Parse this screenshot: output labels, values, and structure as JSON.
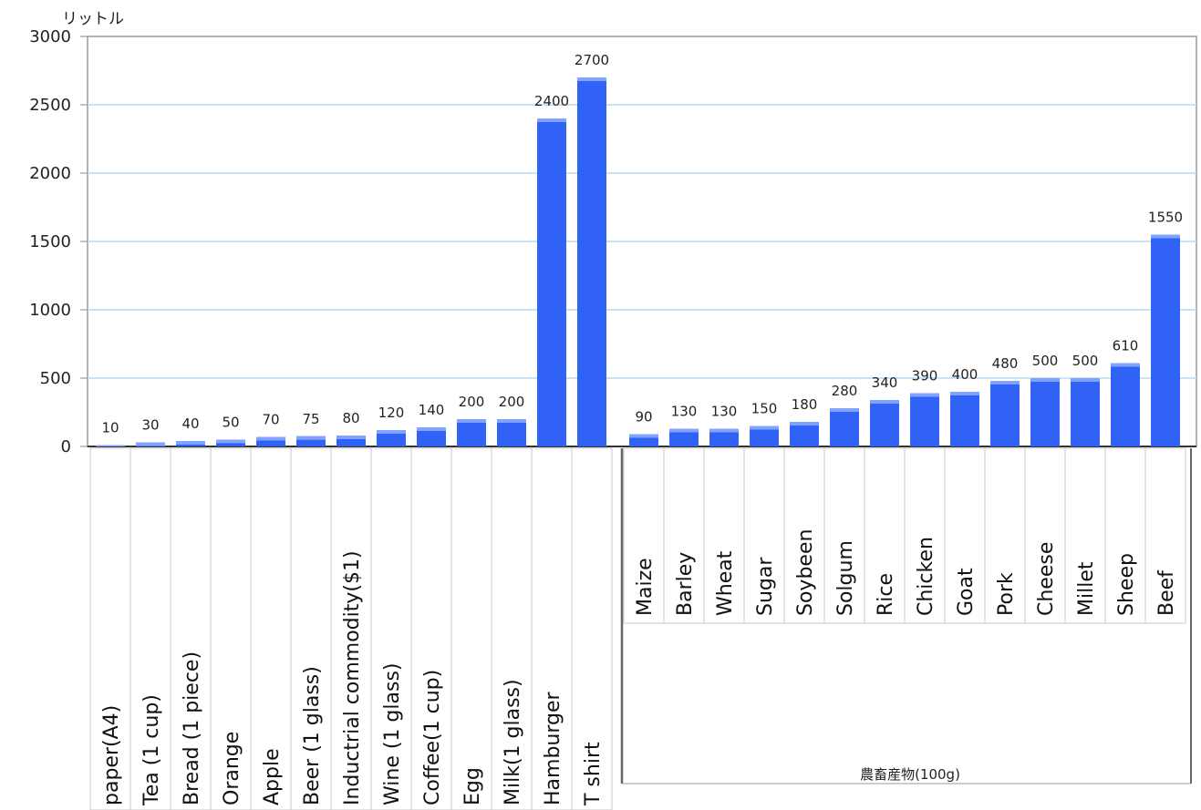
{
  "chart_data": {
    "type": "bar",
    "ylabel": "リットル",
    "ylim": [
      0,
      3000
    ],
    "yticks": [
      0,
      500,
      1000,
      1500,
      2000,
      2500,
      3000
    ],
    "grid": true,
    "legend": "none",
    "colors": {
      "bar": "#2f62f5",
      "bar_top": "#7fa3ff",
      "grid": "#b9d9f0",
      "axis": "#888888"
    },
    "groups": [
      {
        "name": "",
        "categories": [
          "paper(A4)",
          "Tea (1 cup)",
          "Bread (1 piece)",
          "Orange",
          "Apple",
          "Beer (1 glass)",
          "Inductrial commodity($1)",
          "Wine (1 glass)",
          "Coffee(1 cup)",
          "Egg",
          "Milk(1 glass)",
          "Hamburger",
          "T shirt"
        ],
        "values": [
          10,
          30,
          40,
          50,
          70,
          75,
          80,
          120,
          140,
          200,
          200,
          2400,
          2700
        ]
      },
      {
        "name": "農畜産物(100g)",
        "categories": [
          "Maize",
          "Barley",
          "Wheat",
          "Sugar",
          "Soybeen",
          "Solgum",
          "Rice",
          "Chicken",
          "Goat",
          "Pork",
          "Cheese",
          "Millet",
          "Sheep",
          "Beef"
        ],
        "values": [
          90,
          130,
          130,
          150,
          180,
          280,
          340,
          390,
          400,
          480,
          500,
          500,
          610,
          1550
        ]
      }
    ]
  }
}
